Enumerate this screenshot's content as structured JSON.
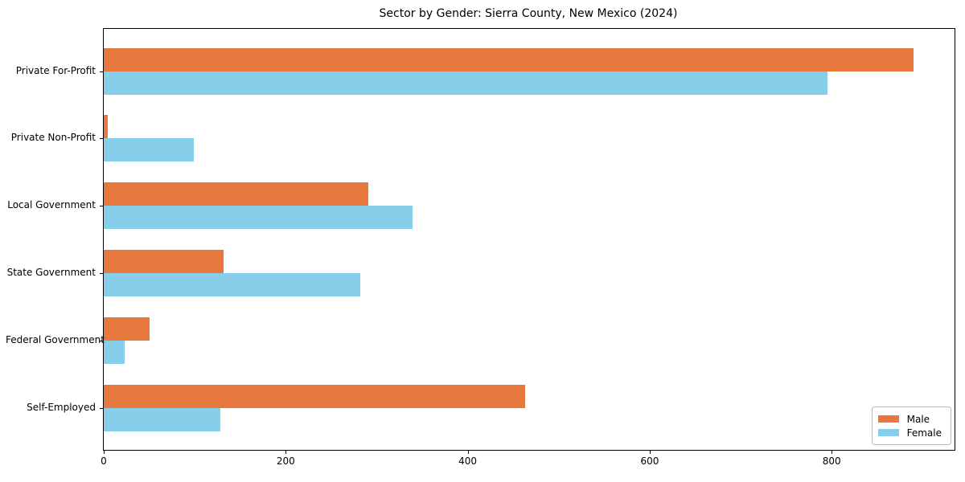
{
  "chart_data": {
    "type": "bar",
    "orientation": "horizontal",
    "title": "Sector by Gender: Sierra County, New Mexico (2024)",
    "categories": [
      "Private For-Profit",
      "Private Non-Profit",
      "Local Government",
      "State Government",
      "Federal Government",
      "Self-Employed"
    ],
    "series": [
      {
        "name": "Male",
        "color": "#e8793e",
        "values": [
          890,
          4,
          291,
          132,
          50,
          463
        ]
      },
      {
        "name": "Female",
        "color": "#87ceeb",
        "values": [
          795,
          99,
          339,
          282,
          23,
          128
        ]
      }
    ],
    "xlabel": "",
    "ylabel": "",
    "xlim": [
      0,
      935
    ],
    "xticks": [
      0,
      200,
      400,
      600,
      800
    ],
    "grid": false,
    "legend": {
      "position": "lower right",
      "entries": [
        {
          "label": "Male",
          "color": "#e8793e"
        },
        {
          "label": "Female",
          "color": "#87ceeb"
        }
      ]
    },
    "colors": {
      "spine": "#000000",
      "background": "#ffffff",
      "text": "#000000",
      "legend_border": "#b9b9b9"
    }
  }
}
